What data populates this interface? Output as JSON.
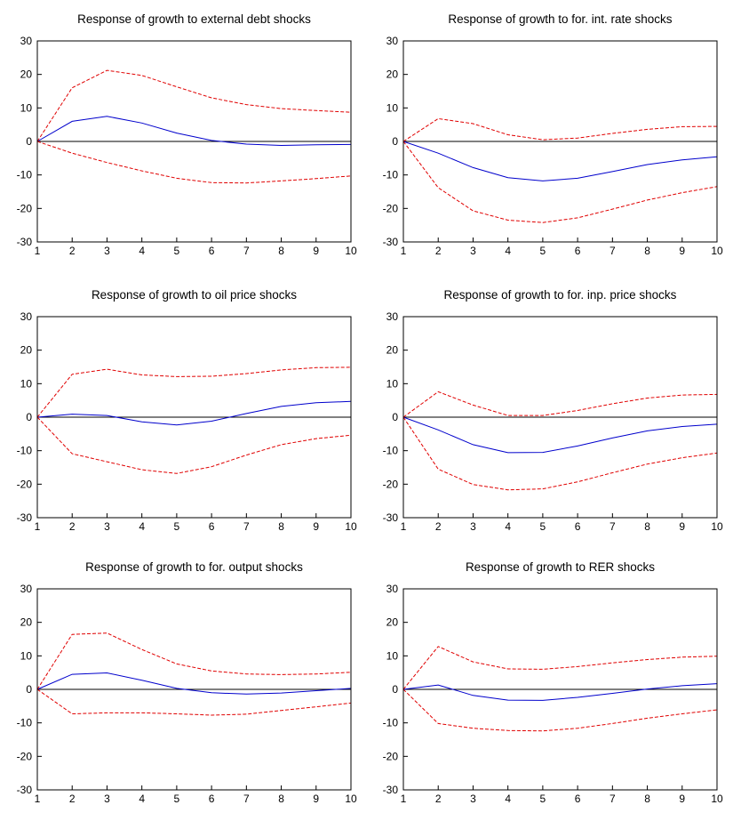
{
  "colors": {
    "impulse": "#0000cc",
    "band": "#e00000",
    "zero_line": "#000000",
    "frame": "#000000"
  },
  "chart_data": [
    {
      "type": "line",
      "title": "Response of growth to external debt shocks",
      "x": [
        1,
        2,
        3,
        4,
        5,
        6,
        7,
        8,
        9,
        10
      ],
      "ylim": [
        -30,
        30
      ],
      "yticks": [
        -30,
        -20,
        -10,
        0,
        10,
        20,
        30
      ],
      "grid": false,
      "series": [
        {
          "style": "solid",
          "values": [
            0,
            6,
            7.5,
            5.5,
            2.5,
            0.3,
            -0.8,
            -1.2,
            -1,
            -0.9
          ]
        },
        {
          "style": "dashed",
          "values": [
            0,
            16,
            21.2,
            19.7,
            16.3,
            13,
            11,
            9.8,
            9.2,
            8.7
          ]
        },
        {
          "style": "dashed",
          "values": [
            0,
            -3.5,
            -6.3,
            -8.8,
            -11,
            -12.3,
            -12.4,
            -11.8,
            -11.1,
            -10.3
          ]
        }
      ]
    },
    {
      "type": "line",
      "title": "Response of growth to for. int. rate shocks",
      "x": [
        1,
        2,
        3,
        4,
        5,
        6,
        7,
        8,
        9,
        10
      ],
      "ylim": [
        -30,
        30
      ],
      "yticks": [
        -30,
        -20,
        -10,
        0,
        10,
        20,
        30
      ],
      "grid": false,
      "series": [
        {
          "style": "solid",
          "values": [
            0,
            -3.5,
            -7.8,
            -10.8,
            -11.8,
            -11,
            -9,
            -6.9,
            -5.5,
            -4.6
          ]
        },
        {
          "style": "dashed",
          "values": [
            0,
            6.8,
            5.3,
            2,
            0.5,
            1,
            2.4,
            3.6,
            4.4,
            4.5
          ]
        },
        {
          "style": "dashed",
          "values": [
            0,
            -13.8,
            -20.7,
            -23.5,
            -24.2,
            -22.8,
            -20.2,
            -17.5,
            -15.3,
            -13.5
          ]
        }
      ]
    },
    {
      "type": "line",
      "title": "Response of growth to oil price shocks",
      "x": [
        1,
        2,
        3,
        4,
        5,
        6,
        7,
        8,
        9,
        10
      ],
      "ylim": [
        -30,
        30
      ],
      "yticks": [
        -30,
        -20,
        -10,
        0,
        10,
        20,
        30
      ],
      "grid": false,
      "series": [
        {
          "style": "solid",
          "values": [
            0,
            0.9,
            0.5,
            -1.4,
            -2.3,
            -1.2,
            1.1,
            3.2,
            4.3,
            4.7
          ]
        },
        {
          "style": "dashed",
          "values": [
            0,
            12.8,
            14.3,
            12.6,
            12.1,
            12.2,
            13,
            14.1,
            14.8,
            14.9
          ]
        },
        {
          "style": "dashed",
          "values": [
            0,
            -10.9,
            -13.3,
            -15.7,
            -16.8,
            -14.8,
            -11.3,
            -8.2,
            -6.4,
            -5.4
          ]
        }
      ]
    },
    {
      "type": "line",
      "title": "Response of growth to for. inp. price shocks",
      "x": [
        1,
        2,
        3,
        4,
        5,
        6,
        7,
        8,
        9,
        10
      ],
      "ylim": [
        -30,
        30
      ],
      "yticks": [
        -30,
        -20,
        -10,
        0,
        10,
        20,
        30
      ],
      "grid": false,
      "series": [
        {
          "style": "solid",
          "values": [
            0,
            -3.8,
            -8.2,
            -10.6,
            -10.5,
            -8.6,
            -6.2,
            -4.1,
            -2.8,
            -2.1
          ]
        },
        {
          "style": "dashed",
          "values": [
            0,
            7.6,
            3.6,
            0.5,
            0.5,
            2,
            4,
            5.7,
            6.6,
            6.8
          ]
        },
        {
          "style": "dashed",
          "values": [
            0,
            -15.5,
            -20.1,
            -21.7,
            -21.4,
            -19.3,
            -16.6,
            -14,
            -12.1,
            -10.7
          ]
        }
      ]
    },
    {
      "type": "line",
      "title": "Response of growth to for. output shocks",
      "x": [
        1,
        2,
        3,
        4,
        5,
        6,
        7,
        8,
        9,
        10
      ],
      "ylim": [
        -30,
        30
      ],
      "yticks": [
        -30,
        -20,
        -10,
        0,
        10,
        20,
        30
      ],
      "grid": false,
      "series": [
        {
          "style": "solid",
          "values": [
            0,
            4.5,
            4.9,
            2.7,
            0.3,
            -1,
            -1.4,
            -1.1,
            -0.4,
            0.3
          ]
        },
        {
          "style": "dashed",
          "values": [
            0,
            16.4,
            16.8,
            11.9,
            7.6,
            5.5,
            4.6,
            4.4,
            4.6,
            5.1
          ]
        },
        {
          "style": "dashed",
          "values": [
            0,
            -7.3,
            -7,
            -7,
            -7.3,
            -7.7,
            -7.4,
            -6.3,
            -5.2,
            -4.1
          ]
        }
      ]
    },
    {
      "type": "line",
      "title": "Response of growth to RER shocks",
      "x": [
        1,
        2,
        3,
        4,
        5,
        6,
        7,
        8,
        9,
        10
      ],
      "ylim": [
        -30,
        30
      ],
      "yticks": [
        -30,
        -20,
        -10,
        0,
        10,
        20,
        30
      ],
      "grid": false,
      "series": [
        {
          "style": "solid",
          "values": [
            0,
            1.3,
            -1.8,
            -3.2,
            -3.3,
            -2.4,
            -1.2,
            0.1,
            1.1,
            1.7
          ]
        },
        {
          "style": "dashed",
          "values": [
            0,
            12.8,
            8.2,
            6.1,
            6,
            6.8,
            7.9,
            8.9,
            9.6,
            9.9
          ]
        },
        {
          "style": "dashed",
          "values": [
            0,
            -10.2,
            -11.6,
            -12.3,
            -12.4,
            -11.6,
            -10.2,
            -8.6,
            -7.3,
            -6.1
          ]
        }
      ]
    }
  ]
}
